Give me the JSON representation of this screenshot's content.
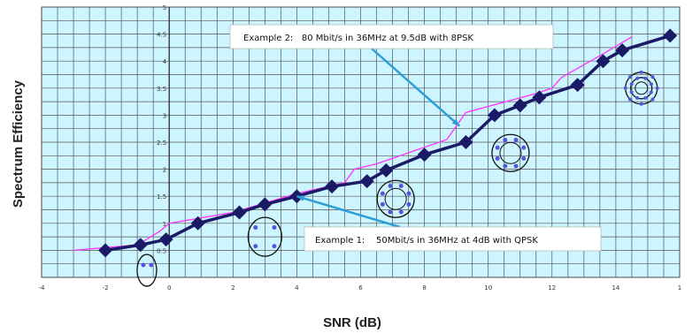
{
  "chart_data": {
    "type": "line",
    "xlabel": "SNR (dB)",
    "ylabel": "Spectrum Efficiency",
    "xlim": [
      -4,
      16
    ],
    "ylim": [
      0,
      5
    ],
    "x_ticks": [
      "-4",
      "-2",
      "0",
      "2",
      "4",
      "6",
      "8",
      "10",
      "12",
      "14",
      "1"
    ],
    "y_ticks": [
      "0.5",
      "1",
      "1.5",
      "2",
      "2.5",
      "3",
      "3.5",
      "4",
      "4.5",
      "5"
    ],
    "grid": true,
    "colors": {
      "plot_bg": "#ccf5ff",
      "grid": "#555555",
      "series_main": "#1a1a66",
      "series_ref": "#ff33ff",
      "arrow": "#2e9fd6",
      "ring": "#111111",
      "ring_dots": "#5555dd"
    },
    "series": [
      {
        "values": [
          [
            -2.0,
            0.5
          ],
          [
            -0.9,
            0.6
          ],
          [
            -0.1,
            0.7
          ],
          [
            0.9,
            1.0
          ],
          [
            2.2,
            1.2
          ],
          [
            3.0,
            1.35
          ],
          [
            4.0,
            1.5
          ],
          [
            5.1,
            1.68
          ],
          [
            6.2,
            1.78
          ],
          [
            6.8,
            1.98
          ],
          [
            8.0,
            2.27
          ],
          [
            9.3,
            2.5
          ],
          [
            10.2,
            3.0
          ],
          [
            11.0,
            3.18
          ],
          [
            11.6,
            3.33
          ],
          [
            12.8,
            3.56
          ],
          [
            13.6,
            4.0
          ],
          [
            14.2,
            4.2
          ],
          [
            15.7,
            4.47
          ]
        ],
        "style": "thick line with diamond markers"
      },
      {
        "values": [
          [
            -3.0,
            0.5
          ],
          [
            -1.0,
            0.6
          ],
          [
            -0.3,
            0.85
          ],
          [
            0.0,
            1.0
          ],
          [
            2.0,
            1.2
          ],
          [
            4.0,
            1.55
          ],
          [
            5.5,
            1.75
          ],
          [
            5.8,
            2.0
          ],
          [
            6.5,
            2.1
          ],
          [
            8.7,
            2.55
          ],
          [
            9.3,
            3.05
          ],
          [
            11.5,
            3.4
          ],
          [
            12.0,
            3.5
          ],
          [
            12.3,
            3.7
          ],
          [
            13.5,
            4.1
          ],
          [
            14.5,
            4.45
          ]
        ],
        "style": "thin line"
      }
    ],
    "annotations": [
      {
        "text": "Example 2:   80 Mbit/s in 36MHz at 9.5dB with 8PSK",
        "points_to": [
          9.1,
          2.8
        ]
      },
      {
        "text": "Example 1:    50Mbit/s in 36MHz at 4dB with QPSK",
        "points_to": [
          4.0,
          1.5
        ]
      }
    ],
    "constellations": [
      {
        "modulation": "BPSK",
        "dots": 2,
        "rings": 1,
        "near": [
          -0.7,
          0.13
        ]
      },
      {
        "modulation": "QPSK",
        "dots": 4,
        "rings": 1,
        "near": [
          3.0,
          0.75
        ]
      },
      {
        "modulation": "8PSK",
        "dots": 8,
        "rings": 1,
        "near": [
          7.1,
          1.45
        ]
      },
      {
        "modulation": "8PSK",
        "dots": 8,
        "rings": 1,
        "near": [
          10.7,
          2.3
        ]
      },
      {
        "modulation": "16APSK",
        "dots": 16,
        "rings": 2,
        "near": [
          14.8,
          3.5
        ]
      }
    ]
  }
}
